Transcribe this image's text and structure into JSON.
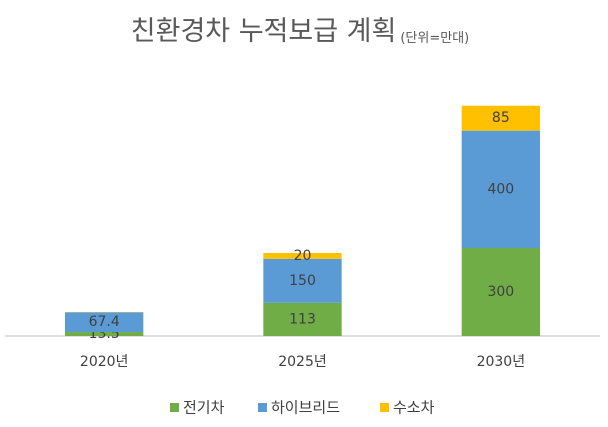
{
  "chart_data": {
    "type": "stacked_bar",
    "title": "친환경차 누적보급 계획",
    "subtitle": "(단위=만대)",
    "categories": [
      "2020년",
      "2025년",
      "2030년"
    ],
    "series": [
      {
        "name": "전기차",
        "color": "#70ad47",
        "values": [
          13.5,
          113,
          300
        ]
      },
      {
        "name": "하이브리드",
        "color": "#5b9bd5",
        "values": [
          67.4,
          150,
          400
        ]
      },
      {
        "name": "수소차",
        "color": "#ffc000",
        "values": [
          1,
          20,
          85
        ],
        "value_labels": [
          null,
          "20",
          "85"
        ]
      }
    ],
    "ylim": [
      0,
      900
    ],
    "grid": false,
    "legend": "bottom"
  }
}
